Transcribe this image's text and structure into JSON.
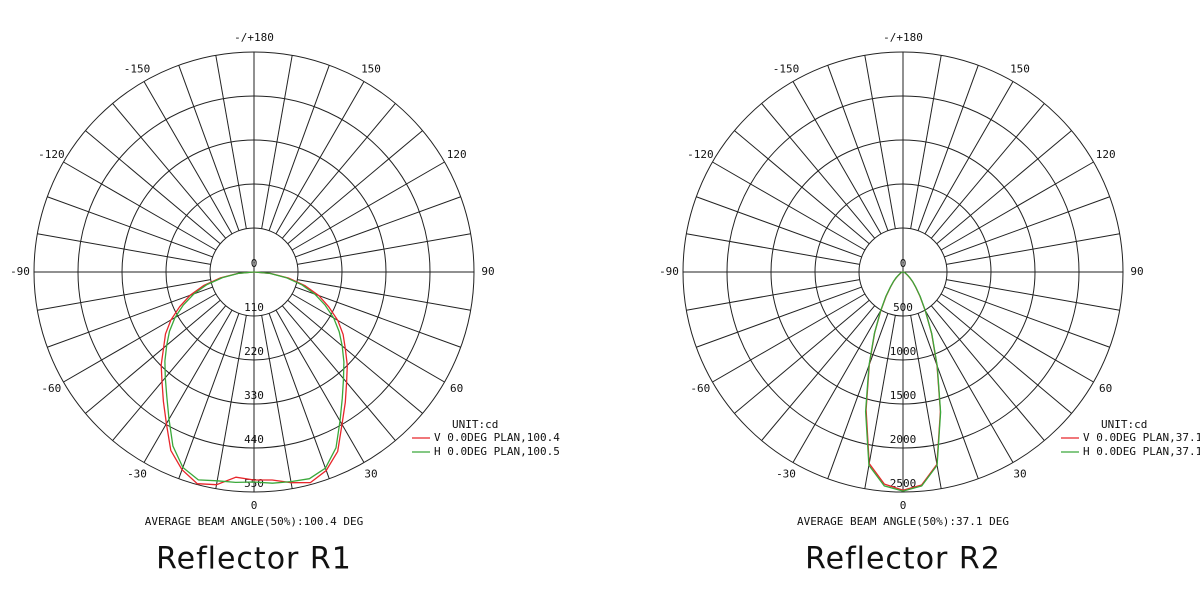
{
  "chart_data": [
    {
      "type": "polar",
      "caption": "Reflector R1",
      "note": "AVERAGE BEAM ANGLE(50%):100.4 DEG",
      "unit_label": "UNIT:cd",
      "rlim": [
        0,
        550
      ],
      "rticks": [
        0,
        110,
        220,
        330,
        440,
        550
      ],
      "thetaticks": [
        {
          "value": 180,
          "label": "-/+180"
        },
        -150,
        -120,
        -90,
        -60,
        -30,
        0,
        30,
        60,
        90,
        120,
        150
      ],
      "theta_grid_step": 10,
      "legend": "lower right",
      "x": [
        -90,
        -85,
        -80,
        -75,
        -70,
        -65,
        -60,
        -55,
        -50,
        -45,
        -40,
        -35,
        -30,
        -25,
        -20,
        -15,
        -10,
        -5,
        0,
        5,
        10,
        15,
        20,
        25,
        30,
        35,
        40,
        45,
        50,
        55,
        60,
        65,
        70,
        75,
        80,
        85,
        90
      ],
      "series": [
        {
          "name": "V 0.0DEG PLAN,100.4",
          "color": "#e8262b",
          "values": [
            0,
            40,
            85,
            130,
            170,
            205,
            240,
            270,
            295,
            328,
            358,
            395,
            438,
            492,
            526,
            548,
            540,
            515,
            520,
            522,
            535,
            545,
            528,
            495,
            440,
            398,
            360,
            330,
            298,
            272,
            242,
            206,
            172,
            132,
            88,
            42,
            0
          ]
        },
        {
          "name": "H 0.0DEG PLAN,100.5",
          "color": "#3aa83a",
          "values": [
            0,
            38,
            80,
            122,
            160,
            195,
            228,
            258,
            285,
            315,
            345,
            380,
            425,
            480,
            520,
            538,
            530,
            528,
            525,
            530,
            532,
            535,
            522,
            485,
            430,
            385,
            348,
            318,
            288,
            260,
            230,
            196,
            162,
            124,
            82,
            40,
            0
          ]
        }
      ]
    },
    {
      "type": "polar",
      "caption": "Reflector R2",
      "note": "AVERAGE BEAM ANGLE(50%):37.1 DEG",
      "unit_label": "UNIT:cd",
      "rlim": [
        0,
        2500
      ],
      "rticks": [
        0,
        500,
        1000,
        1500,
        2000,
        2500
      ],
      "thetaticks": [
        {
          "value": 180,
          "label": "-/+180"
        },
        -150,
        -120,
        -90,
        -60,
        -30,
        0,
        30,
        60,
        90,
        120,
        150
      ],
      "theta_grid_step": 10,
      "legend": "lower right",
      "x": [
        -90,
        -85,
        -80,
        -75,
        -70,
        -65,
        -60,
        -55,
        -50,
        -45,
        -40,
        -35,
        -30,
        -25,
        -20,
        -15,
        -10,
        -5,
        0,
        5,
        10,
        15,
        20,
        25,
        30,
        35,
        40,
        45,
        50,
        55,
        60,
        65,
        70,
        75,
        80,
        85,
        90
      ],
      "series": [
        {
          "name": "V 0.0DEG PLAN,37.1",
          "color": "#e8262b",
          "values": [
            0,
            5,
            10,
            15,
            20,
            30,
            40,
            60,
            100,
            150,
            220,
            330,
            500,
            760,
            1120,
            1620,
            2210,
            2420,
            2480,
            2430,
            2220,
            1640,
            1130,
            770,
            505,
            335,
            225,
            155,
            100,
            60,
            40,
            30,
            20,
            15,
            10,
            5,
            0
          ]
        },
        {
          "name": "H 0.0DEG PLAN,37.1",
          "color": "#3aa83a",
          "values": [
            0,
            5,
            10,
            15,
            20,
            30,
            42,
            62,
            105,
            155,
            225,
            340,
            510,
            770,
            1130,
            1640,
            2230,
            2440,
            2490,
            2440,
            2230,
            1650,
            1140,
            775,
            510,
            340,
            228,
            158,
            104,
            62,
            42,
            30,
            20,
            15,
            10,
            5,
            0
          ]
        }
      ]
    }
  ]
}
